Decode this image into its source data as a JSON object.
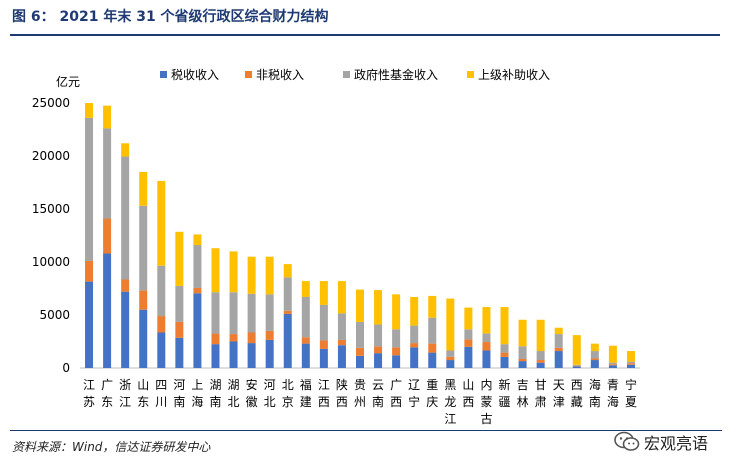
{
  "header": {
    "title": "图 6：  2021 年末 31 个省级行政区综合财力结构"
  },
  "footer": {
    "source": "资料来源：Wind，信达证券研发中心",
    "watermark": "宏观亮语"
  },
  "colors": {
    "rule": "#1f3a73",
    "tax": "#4472c4",
    "nontax": "#ed7d31",
    "fund": "#a5a5a5",
    "transfer": "#ffc000"
  },
  "chart_data": {
    "type": "bar",
    "stacked": true,
    "ylabel": "亿元",
    "ylim": [
      0,
      25000
    ],
    "yticks": [
      0,
      5000,
      10000,
      15000,
      20000,
      25000
    ],
    "legend_position": "top",
    "categories": [
      "江苏",
      "广东",
      "浙江",
      "山东",
      "四川",
      "河南",
      "上海",
      "湖南",
      "湖北",
      "安徽",
      "河北",
      "北京",
      "福建",
      "江西",
      "陕西",
      "贵州",
      "云南",
      "广西",
      "辽宁",
      "重庆",
      "黑龙江",
      "山西",
      "内蒙古",
      "新疆",
      "吉林",
      "甘肃",
      "天津",
      "西藏",
      "海南",
      "青海",
      "宁夏"
    ],
    "series": [
      {
        "name": "税收收入",
        "color": "#4472c4",
        "values": [
          8150,
          10800,
          7200,
          5500,
          3350,
          2850,
          7050,
          2250,
          2500,
          2350,
          2650,
          5100,
          2300,
          1800,
          2150,
          1150,
          1400,
          1200,
          1950,
          1450,
          750,
          2000,
          1650,
          1050,
          650,
          500,
          1600,
          150,
          750,
          250,
          300
        ]
      },
      {
        "name": "非税收入",
        "color": "#ed7d31",
        "values": [
          1950,
          3300,
          1150,
          1800,
          1550,
          1500,
          500,
          1000,
          700,
          1000,
          850,
          300,
          600,
          800,
          500,
          750,
          650,
          750,
          400,
          850,
          300,
          700,
          800,
          400,
          200,
          250,
          300,
          50,
          150,
          100,
          150
        ]
      },
      {
        "name": "政府性基金收入",
        "color": "#a5a5a5",
        "values": [
          13500,
          8500,
          11600,
          8000,
          4750,
          3400,
          4050,
          3900,
          3950,
          3650,
          3450,
          3150,
          3800,
          3350,
          2500,
          2450,
          2050,
          1700,
          1650,
          2450,
          600,
          950,
          800,
          800,
          1200,
          850,
          1300,
          100,
          700,
          150,
          150
        ]
      },
      {
        "name": "上级补助收入",
        "color": "#ffc000",
        "values": [
          1400,
          2150,
          1250,
          3200,
          8000,
          5100,
          1000,
          4150,
          3850,
          3500,
          3550,
          1250,
          1500,
          2250,
          3050,
          3050,
          3250,
          3300,
          2700,
          2050,
          4900,
          2050,
          2500,
          3500,
          2500,
          2950,
          600,
          2800,
          700,
          1600,
          1000
        ]
      }
    ]
  }
}
